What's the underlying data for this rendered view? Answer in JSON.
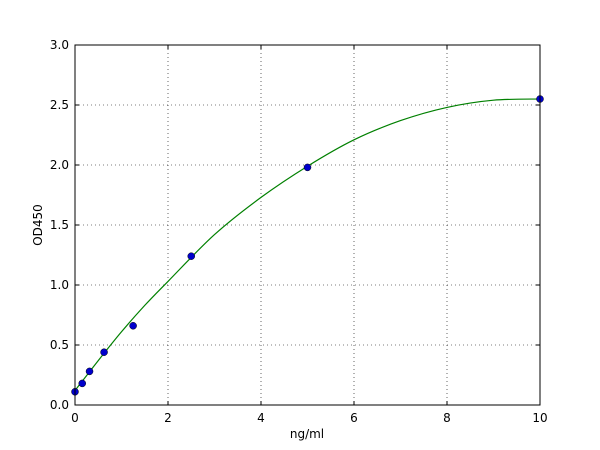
{
  "chart_data": {
    "type": "scatter",
    "title": "",
    "xlabel": "ng/ml",
    "ylabel": "OD450",
    "xlim": [
      0,
      10
    ],
    "ylim": [
      0,
      3.0
    ],
    "xticks": [
      "0",
      "2",
      "4",
      "6",
      "8",
      "10"
    ],
    "yticks": [
      "0.0",
      "0.5",
      "1.0",
      "1.5",
      "2.0",
      "2.5",
      "3.0"
    ],
    "grid": true,
    "points": {
      "color": "#0000cc",
      "x": [
        0,
        0.156,
        0.3125,
        0.625,
        1.25,
        2.5,
        5,
        10
      ],
      "y": [
        0.11,
        0.18,
        0.28,
        0.44,
        0.66,
        1.24,
        1.98,
        2.55
      ]
    },
    "fit_curve": {
      "color": "#008000",
      "x": [
        0,
        0.5,
        1,
        1.5,
        2,
        3,
        4,
        5,
        6,
        7,
        8,
        9,
        10
      ],
      "y": [
        0.12,
        0.37,
        0.61,
        0.83,
        1.03,
        1.42,
        1.73,
        1.99,
        2.21,
        2.37,
        2.48,
        2.54,
        2.55
      ]
    }
  }
}
